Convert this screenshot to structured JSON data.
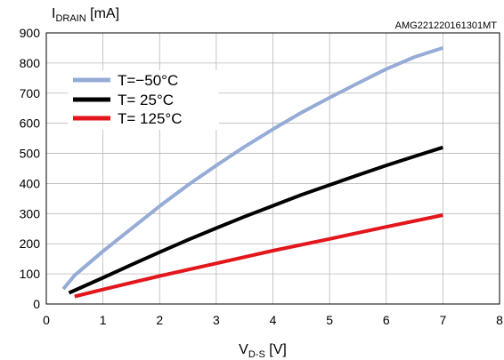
{
  "chart_data": {
    "type": "line",
    "y_title": {
      "main": "I",
      "sub": "DRAIN",
      "unit": " [mA]"
    },
    "x_title": {
      "main": "V",
      "sub": "D-S",
      "unit": " [V]"
    },
    "code": "AMG221220161301MT",
    "xlim": [
      0,
      8
    ],
    "ylim": [
      0,
      900
    ],
    "x_ticks": [
      "0",
      "1",
      "2",
      "3",
      "4",
      "5",
      "6",
      "7",
      "8"
    ],
    "y_ticks": [
      "0",
      "100",
      "200",
      "300",
      "400",
      "500",
      "600",
      "700",
      "800",
      "900"
    ],
    "grid": true,
    "legend_position": "top-left",
    "series": [
      {
        "name": "T=−50°C",
        "color": "#96abd6",
        "x": [
          0.3,
          0.5,
          1.0,
          1.5,
          2.0,
          2.5,
          3.0,
          3.5,
          4.0,
          4.5,
          5.0,
          5.5,
          6.0,
          6.5,
          7.0
        ],
        "y": [
          50,
          95,
          175,
          250,
          325,
          395,
          460,
          522,
          580,
          635,
          685,
          733,
          780,
          820,
          850
        ]
      },
      {
        "name": "T= 25°C",
        "color": "#000000",
        "x": [
          0.4,
          1.0,
          1.5,
          2.0,
          2.5,
          3.0,
          3.5,
          4.0,
          4.5,
          5.0,
          5.5,
          6.0,
          6.5,
          7.0
        ],
        "y": [
          37,
          87,
          130,
          172,
          213,
          252,
          290,
          326,
          362,
          395,
          428,
          460,
          490,
          520
        ]
      },
      {
        "name": "T= 125°C",
        "color": "#e3161b",
        "x": [
          0.5,
          1.0,
          2.0,
          3.0,
          4.0,
          5.0,
          6.0,
          7.0
        ],
        "y": [
          25,
          48,
          93,
          135,
          177,
          216,
          256,
          295
        ]
      }
    ]
  }
}
